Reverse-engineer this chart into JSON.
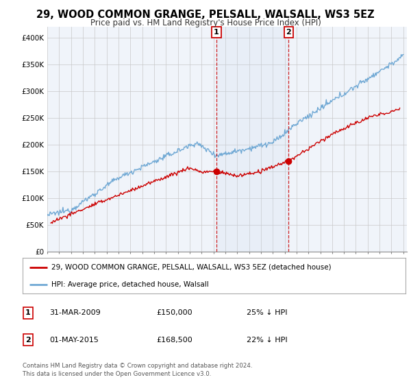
{
  "title": "29, WOOD COMMON GRANGE, PELSALL, WALSALL, WS3 5EZ",
  "subtitle": "Price paid vs. HM Land Registry's House Price Index (HPI)",
  "ylabel_ticks": [
    "£0",
    "£50K",
    "£100K",
    "£150K",
    "£200K",
    "£250K",
    "£300K",
    "£350K",
    "£400K"
  ],
  "ytick_values": [
    0,
    50000,
    100000,
    150000,
    200000,
    250000,
    300000,
    350000,
    400000
  ],
  "ylim": [
    0,
    420000
  ],
  "xlim_start": 1995.0,
  "xlim_end": 2025.3,
  "hpi_color": "#6fa8d4",
  "price_color": "#cc0000",
  "marker1_date": 2009.25,
  "marker1_price": 150000,
  "marker2_date": 2015.33,
  "marker2_price": 168500,
  "legend_property": "29, WOOD COMMON GRANGE, PELSALL, WALSALL, WS3 5EZ (detached house)",
  "legend_hpi": "HPI: Average price, detached house, Walsall",
  "table_rows": [
    {
      "num": "1",
      "date": "31-MAR-2009",
      "price": "£150,000",
      "pct": "25% ↓ HPI"
    },
    {
      "num": "2",
      "date": "01-MAY-2015",
      "price": "£168,500",
      "pct": "22% ↓ HPI"
    }
  ],
  "footer": "Contains HM Land Registry data © Crown copyright and database right 2024.\nThis data is licensed under the Open Government Licence v3.0.",
  "background_color": "#ffffff",
  "plot_bg_color": "#f0f4fa"
}
